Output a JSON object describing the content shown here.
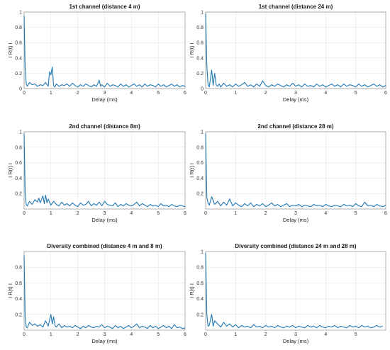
{
  "figure": {
    "line_color": "#1f77b4",
    "grid": true
  },
  "chart_data": [
    {
      "type": "line",
      "title": "1st channel (distance 4 m)",
      "xlabel": "Delay (ms)",
      "ylabel": "I R(t) I",
      "xlim": [
        0,
        6
      ],
      "ylim": [
        0,
        1
      ],
      "xticks": [
        "0",
        "1",
        "2",
        "3",
        "4",
        "5",
        "6"
      ],
      "yticks": [
        "0",
        "0.2",
        "0.4",
        "0.6",
        "0.8",
        "1"
      ],
      "series": [
        {
          "x": [
            0,
            0.04,
            0.08,
            0.12,
            0.2,
            0.3,
            0.4,
            0.5,
            0.6,
            0.7,
            0.8,
            0.9,
            0.95,
            1.0,
            1.05,
            1.1,
            1.15,
            1.2,
            1.3,
            1.4,
            1.5,
            1.6,
            1.7,
            1.8,
            1.9,
            2.0,
            2.1,
            2.2,
            2.3,
            2.4,
            2.5,
            2.6,
            2.7,
            2.8,
            2.85,
            2.9,
            3.0,
            3.1,
            3.2,
            3.3,
            3.4,
            3.5,
            3.6,
            3.7,
            3.8,
            3.9,
            4.0,
            4.1,
            4.2,
            4.3,
            4.4,
            4.5,
            4.6,
            4.7,
            4.8,
            4.9,
            5.0,
            5.1,
            5.2,
            5.3,
            5.4,
            5.5,
            5.6,
            5.7,
            5.8,
            5.9,
            6.0
          ],
          "y": [
            0.95,
            0.25,
            0.06,
            0.03,
            0.08,
            0.05,
            0.06,
            0.03,
            0.05,
            0.04,
            0.08,
            0.03,
            0.22,
            0.18,
            0.28,
            0.04,
            0.02,
            0.06,
            0.03,
            0.05,
            0.04,
            0.06,
            0.03,
            0.07,
            0.04,
            0.02,
            0.05,
            0.03,
            0.06,
            0.04,
            0.02,
            0.05,
            0.03,
            0.11,
            0.03,
            0.05,
            0.02,
            0.07,
            0.03,
            0.05,
            0.04,
            0.02,
            0.06,
            0.03,
            0.05,
            0.02,
            0.04,
            0.06,
            0.03,
            0.05,
            0.02,
            0.06,
            0.03,
            0.05,
            0.04,
            0.02,
            0.06,
            0.03,
            0.05,
            0.02,
            0.04,
            0.06,
            0.03,
            0.05,
            0.02,
            0.04,
            0.03
          ]
        }
      ]
    },
    {
      "type": "line",
      "title": "1st channel (distance 24 m)",
      "xlabel": "Delay (ms)",
      "ylabel": "I R(t) I",
      "xlim": [
        0,
        6
      ],
      "ylim": [
        0,
        1
      ],
      "xticks": [
        "0",
        "1",
        "2",
        "3",
        "4",
        "5",
        "6"
      ],
      "yticks": [
        "0",
        "0.2",
        "0.4",
        "0.6",
        "0.8",
        "1"
      ],
      "series": [
        {
          "x": [
            0,
            0.04,
            0.08,
            0.12,
            0.2,
            0.25,
            0.3,
            0.35,
            0.4,
            0.45,
            0.5,
            0.6,
            0.7,
            0.8,
            0.9,
            1.0,
            1.1,
            1.2,
            1.3,
            1.4,
            1.5,
            1.6,
            1.7,
            1.8,
            1.9,
            2.0,
            2.1,
            2.2,
            2.3,
            2.4,
            2.5,
            2.6,
            2.7,
            2.8,
            2.9,
            3.0,
            3.1,
            3.2,
            3.3,
            3.4,
            3.5,
            3.6,
            3.7,
            3.8,
            3.9,
            4.0,
            4.1,
            4.2,
            4.3,
            4.4,
            4.5,
            4.6,
            4.7,
            4.8,
            4.9,
            5.0,
            5.1,
            5.2,
            5.3,
            5.4,
            5.5,
            5.6,
            5.7,
            5.8,
            5.9,
            6.0
          ],
          "y": [
            0.98,
            0.3,
            0.05,
            0.02,
            0.24,
            0.04,
            0.2,
            0.05,
            0.03,
            0.06,
            0.02,
            0.07,
            0.03,
            0.05,
            0.02,
            0.06,
            0.03,
            0.05,
            0.08,
            0.03,
            0.05,
            0.02,
            0.06,
            0.03,
            0.1,
            0.04,
            0.02,
            0.05,
            0.03,
            0.06,
            0.04,
            0.02,
            0.05,
            0.03,
            0.07,
            0.03,
            0.05,
            0.02,
            0.06,
            0.03,
            0.04,
            0.02,
            0.06,
            0.03,
            0.05,
            0.02,
            0.04,
            0.06,
            0.03,
            0.05,
            0.02,
            0.06,
            0.03,
            0.05,
            0.04,
            0.02,
            0.06,
            0.03,
            0.05,
            0.02,
            0.04,
            0.06,
            0.03,
            0.05,
            0.02,
            0.04
          ]
        }
      ]
    },
    {
      "type": "line",
      "title": "2nd channel (distance 8m)",
      "xlabel": "Delay (ms)",
      "ylabel": "I R(t) I",
      "xlim": [
        0,
        6
      ],
      "ylim": [
        0,
        1
      ],
      "xticks": [
        "0",
        "1",
        "2",
        "3",
        "4",
        "5",
        "6"
      ],
      "yticks": [
        "0.2",
        "0.4",
        "0.6",
        "0.8",
        "1"
      ],
      "series": [
        {
          "x": [
            0,
            0.04,
            0.08,
            0.12,
            0.2,
            0.3,
            0.4,
            0.5,
            0.55,
            0.6,
            0.7,
            0.75,
            0.8,
            0.85,
            0.9,
            1.0,
            1.1,
            1.2,
            1.3,
            1.4,
            1.5,
            1.6,
            1.7,
            1.8,
            1.9,
            2.0,
            2.1,
            2.2,
            2.3,
            2.4,
            2.5,
            2.6,
            2.7,
            2.8,
            2.9,
            3.0,
            3.1,
            3.2,
            3.3,
            3.4,
            3.5,
            3.6,
            3.7,
            3.8,
            3.9,
            4.0,
            4.1,
            4.2,
            4.3,
            4.4,
            4.5,
            4.6,
            4.7,
            4.8,
            4.9,
            5.0,
            5.1,
            5.2,
            5.3,
            5.4,
            5.5,
            5.6,
            5.7,
            5.8,
            5.9,
            6.0
          ],
          "y": [
            0.98,
            0.2,
            0.06,
            0.04,
            0.1,
            0.06,
            0.12,
            0.09,
            0.14,
            0.08,
            0.17,
            0.07,
            0.18,
            0.08,
            0.13,
            0.05,
            0.1,
            0.06,
            0.04,
            0.09,
            0.05,
            0.07,
            0.04,
            0.08,
            0.05,
            0.03,
            0.08,
            0.05,
            0.06,
            0.1,
            0.04,
            0.07,
            0.05,
            0.09,
            0.04,
            0.1,
            0.06,
            0.05,
            0.04,
            0.08,
            0.03,
            0.06,
            0.04,
            0.07,
            0.05,
            0.04,
            0.06,
            0.09,
            0.04,
            0.07,
            0.05,
            0.03,
            0.06,
            0.04,
            0.05,
            0.03,
            0.07,
            0.04,
            0.05,
            0.03,
            0.06,
            0.04,
            0.03,
            0.05,
            0.04,
            0.03
          ]
        }
      ]
    },
    {
      "type": "line",
      "title": "2nd channel (distance 28 m)",
      "xlabel": "Delay (ms)",
      "ylabel": "I R(t) I",
      "xlim": [
        0,
        6
      ],
      "ylim": [
        0,
        1
      ],
      "xticks": [
        "0",
        "1",
        "2",
        "3",
        "4",
        "5",
        "6"
      ],
      "yticks": [
        "0.2",
        "0.4",
        "0.6",
        "0.8",
        "1"
      ],
      "series": [
        {
          "x": [
            0,
            0.04,
            0.08,
            0.12,
            0.2,
            0.3,
            0.4,
            0.5,
            0.6,
            0.7,
            0.8,
            0.9,
            1.0,
            1.1,
            1.2,
            1.3,
            1.4,
            1.5,
            1.6,
            1.7,
            1.8,
            1.9,
            2.0,
            2.1,
            2.2,
            2.3,
            2.4,
            2.5,
            2.6,
            2.7,
            2.8,
            2.9,
            3.0,
            3.1,
            3.2,
            3.3,
            3.4,
            3.5,
            3.6,
            3.7,
            3.8,
            3.9,
            4.0,
            4.1,
            4.2,
            4.3,
            4.4,
            4.5,
            4.6,
            4.7,
            4.8,
            4.9,
            5.0,
            5.1,
            5.2,
            5.3,
            5.4,
            5.5,
            5.6,
            5.7,
            5.8,
            5.9,
            6.0
          ],
          "y": [
            0.98,
            0.15,
            0.08,
            0.05,
            0.16,
            0.06,
            0.1,
            0.04,
            0.09,
            0.05,
            0.13,
            0.04,
            0.08,
            0.05,
            0.03,
            0.07,
            0.04,
            0.08,
            0.03,
            0.06,
            0.04,
            0.07,
            0.03,
            0.05,
            0.08,
            0.04,
            0.06,
            0.03,
            0.05,
            0.07,
            0.03,
            0.05,
            0.04,
            0.06,
            0.03,
            0.05,
            0.04,
            0.03,
            0.06,
            0.04,
            0.05,
            0.03,
            0.06,
            0.04,
            0.03,
            0.05,
            0.04,
            0.03,
            0.06,
            0.04,
            0.05,
            0.03,
            0.07,
            0.04,
            0.03,
            0.09,
            0.04,
            0.05,
            0.03,
            0.06,
            0.04,
            0.03,
            0.05
          ]
        }
      ]
    },
    {
      "type": "line",
      "title": "Diversity combined (distance 4 m and 8 m)",
      "xlabel": "Delay (ms)",
      "ylabel": "I R(t) I",
      "xlim": [
        0,
        6
      ],
      "ylim": [
        0,
        1
      ],
      "xticks": [
        "0",
        "1",
        "2",
        "3",
        "4",
        "5",
        "6"
      ],
      "yticks": [
        "0.2",
        "0.4",
        "0.6",
        "0.8"
      ],
      "series": [
        {
          "x": [
            0,
            0.04,
            0.08,
            0.12,
            0.2,
            0.3,
            0.4,
            0.5,
            0.6,
            0.7,
            0.8,
            0.9,
            1.0,
            1.05,
            1.1,
            1.15,
            1.2,
            1.3,
            1.4,
            1.5,
            1.6,
            1.7,
            1.8,
            1.9,
            2.0,
            2.1,
            2.2,
            2.3,
            2.4,
            2.5,
            2.6,
            2.7,
            2.8,
            2.9,
            3.0,
            3.1,
            3.2,
            3.3,
            3.4,
            3.5,
            3.6,
            3.7,
            3.8,
            3.9,
            4.0,
            4.1,
            4.2,
            4.3,
            4.4,
            4.5,
            4.6,
            4.7,
            4.8,
            4.9,
            5.0,
            5.1,
            5.2,
            5.3,
            5.4,
            5.5,
            5.6,
            5.7,
            5.8,
            5.9,
            6.0
          ],
          "y": [
            0.95,
            0.15,
            0.04,
            0.03,
            0.1,
            0.06,
            0.08,
            0.05,
            0.07,
            0.04,
            0.12,
            0.05,
            0.2,
            0.08,
            0.17,
            0.06,
            0.04,
            0.08,
            0.03,
            0.06,
            0.04,
            0.05,
            0.03,
            0.06,
            0.04,
            0.02,
            0.05,
            0.03,
            0.06,
            0.04,
            0.03,
            0.05,
            0.04,
            0.07,
            0.03,
            0.05,
            0.04,
            0.02,
            0.06,
            0.03,
            0.05,
            0.02,
            0.04,
            0.06,
            0.03,
            0.05,
            0.08,
            0.03,
            0.05,
            0.04,
            0.02,
            0.06,
            0.03,
            0.05,
            0.02,
            0.04,
            0.06,
            0.03,
            0.05,
            0.02,
            0.07,
            0.03,
            0.04,
            0.02,
            0.03
          ]
        }
      ]
    },
    {
      "type": "line",
      "title": "Diversity combined (distance 24 m and 28 m)",
      "xlabel": "Delay (ms)",
      "ylabel": "I R(t) I",
      "xlim": [
        0,
        6
      ],
      "ylim": [
        0,
        1
      ],
      "xticks": [
        "0",
        "1",
        "2",
        "3",
        "4",
        "5"
      ],
      "yticks": [
        "0.2",
        "0.4",
        "0.6",
        "0.8",
        "1"
      ],
      "series": [
        {
          "x": [
            0,
            0.04,
            0.08,
            0.12,
            0.2,
            0.25,
            0.3,
            0.4,
            0.5,
            0.6,
            0.7,
            0.8,
            0.9,
            1.0,
            1.1,
            1.2,
            1.3,
            1.4,
            1.5,
            1.6,
            1.7,
            1.8,
            1.9,
            2.0,
            2.1,
            2.2,
            2.3,
            2.4,
            2.5,
            2.6,
            2.7,
            2.8,
            2.9,
            3.0,
            3.1,
            3.2,
            3.3,
            3.4,
            3.5,
            3.6,
            3.7,
            3.8,
            3.9,
            4.0,
            4.1,
            4.2,
            4.3,
            4.4,
            4.5,
            4.6,
            4.7,
            4.8,
            4.9,
            5.0,
            5.1,
            5.2,
            5.3,
            5.4,
            5.5,
            5.6,
            5.7,
            5.8,
            5.9
          ],
          "y": [
            0.98,
            0.2,
            0.05,
            0.06,
            0.2,
            0.05,
            0.12,
            0.08,
            0.04,
            0.1,
            0.05,
            0.08,
            0.04,
            0.07,
            0.03,
            0.06,
            0.04,
            0.05,
            0.03,
            0.07,
            0.04,
            0.05,
            0.03,
            0.06,
            0.04,
            0.05,
            0.03,
            0.06,
            0.04,
            0.03,
            0.05,
            0.04,
            0.06,
            0.03,
            0.05,
            0.04,
            0.03,
            0.06,
            0.04,
            0.05,
            0.03,
            0.06,
            0.04,
            0.03,
            0.05,
            0.04,
            0.06,
            0.03,
            0.05,
            0.04,
            0.03,
            0.06,
            0.04,
            0.05,
            0.03,
            0.06,
            0.04,
            0.05,
            0.03,
            0.04,
            0.06,
            0.04,
            0.05
          ]
        }
      ]
    }
  ]
}
